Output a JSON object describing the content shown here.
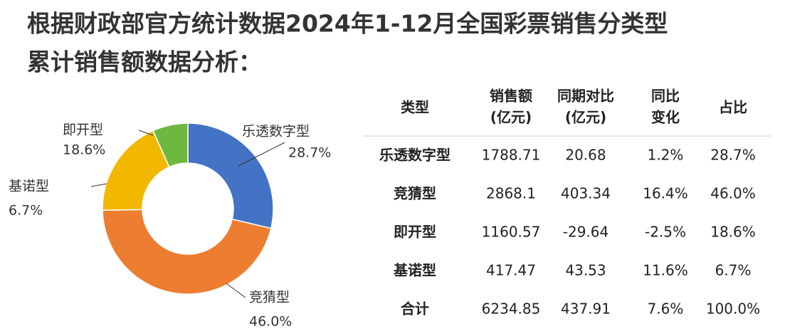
{
  "chart_data": {
    "type": "pie",
    "title": [
      "根据财政部官方统计数据2024年1-12月全国彩票销售分类型",
      "累计销售额数据分析："
    ],
    "categories": [
      "乐透数字型",
      "竞猜型",
      "即开型",
      "基诺型"
    ],
    "values": [
      28.7,
      46.0,
      18.6,
      6.7
    ],
    "value_labels": [
      "28.7%",
      "46.0%",
      "18.6%",
      "6.7%"
    ],
    "colors": [
      "#4472c4",
      "#ed7d31",
      "#f2b800",
      "#6fb83f"
    ],
    "donut": true
  },
  "table": {
    "header": [
      [
        "类型"
      ],
      [
        "销售额",
        "(亿元)"
      ],
      [
        "同期对比",
        "(亿元)"
      ],
      [
        "同比",
        "变化"
      ],
      [
        "占比"
      ]
    ],
    "rows": [
      [
        "乐透数字型",
        "1788.71",
        "20.68",
        "1.2%",
        "28.7%"
      ],
      [
        "竞猜型",
        "2868.1",
        "403.34",
        "16.4%",
        "46.0%"
      ],
      [
        "即开型",
        "1160.57",
        "-29.64",
        "-2.5%",
        "18.6%"
      ],
      [
        "基诺型",
        "417.47",
        "43.53",
        "11.6%",
        "6.7%"
      ],
      [
        "合计",
        "6234.85",
        "437.91",
        "7.6%",
        "100.0%"
      ]
    ]
  }
}
